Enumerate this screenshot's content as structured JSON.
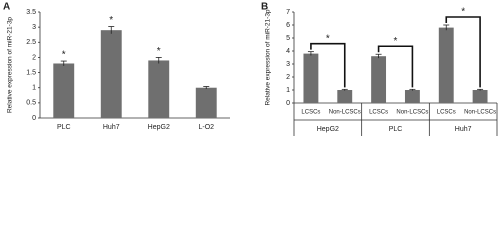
{
  "chart_data": [
    {
      "type": "bar",
      "panel": "A",
      "ylabel": "Relative expression of miR-21-3p",
      "categories": [
        "PLC",
        "Huh7",
        "HepG2",
        "L-O2"
      ],
      "values": [
        1.8,
        2.9,
        1.9,
        1.0
      ],
      "errors": [
        0.08,
        0.12,
        0.1,
        0.04
      ],
      "annotations": [
        "*",
        "*",
        "*",
        null
      ],
      "color": "#6f6f6f",
      "ylim": [
        0,
        3.5
      ],
      "yticks": [
        0,
        0.5,
        1,
        1.5,
        2,
        2.5,
        3,
        3.5
      ]
    },
    {
      "type": "bar",
      "panel": "B",
      "ylabel": "Relative expression of miR-21-3p",
      "categories": [
        "LCSCs",
        "Non-LCSCs",
        "LCSCs",
        "Non-LCSCs",
        "LCSCs",
        "Non-LCSCs"
      ],
      "groups": [
        "HepG2",
        "PLC",
        "Huh7"
      ],
      "group_annotations": [
        "*",
        "*",
        "*"
      ],
      "values": [
        3.8,
        1.0,
        3.6,
        1.0,
        5.8,
        1.0
      ],
      "errors": [
        0.15,
        0.05,
        0.15,
        0.05,
        0.2,
        0.05
      ],
      "color": "#6f6f6f",
      "ylim": [
        0,
        7
      ],
      "yticks": [
        0,
        1,
        2,
        3,
        4,
        5,
        6,
        7
      ]
    }
  ]
}
